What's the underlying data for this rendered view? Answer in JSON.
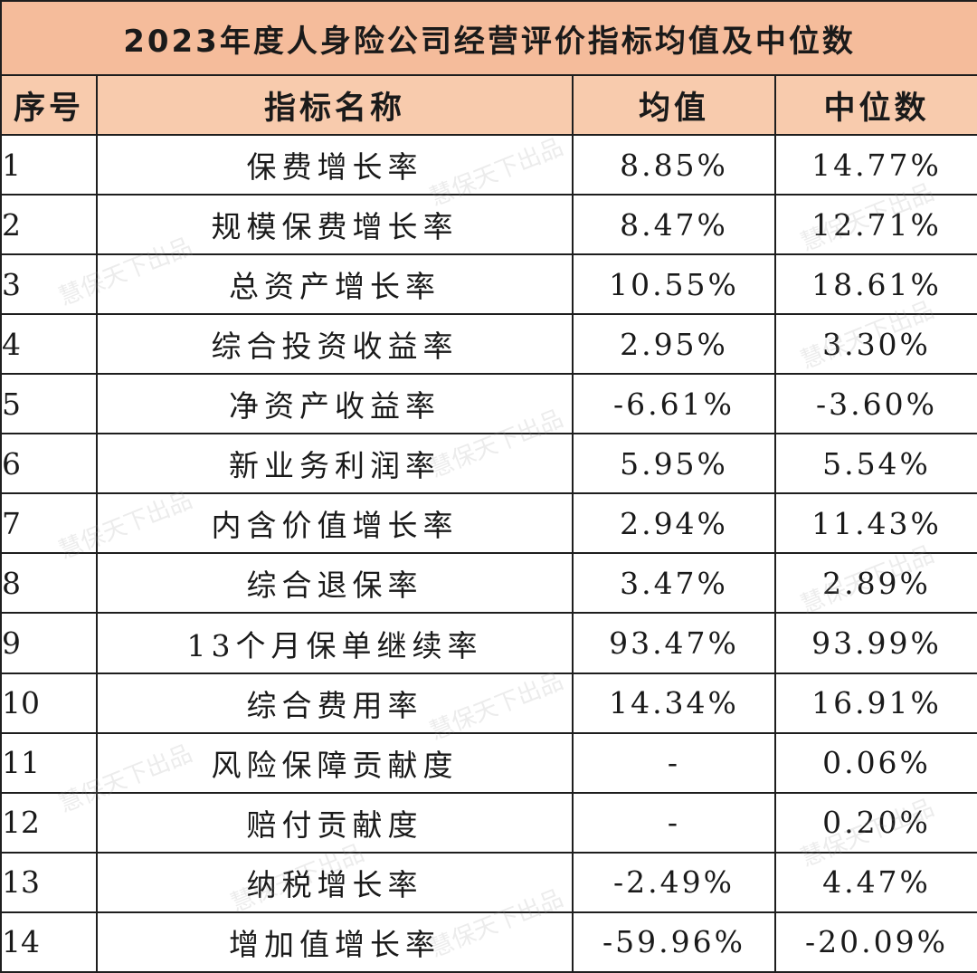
{
  "title": "2023年度人身险公司经营评价指标均值及中位数",
  "headers": {
    "no": "序号",
    "name": "指标名称",
    "mean": "均值",
    "median": "中位数"
  },
  "rows": [
    {
      "no": "1",
      "name": "保费增长率",
      "mean": "8.85%",
      "median": "14.77%"
    },
    {
      "no": "2",
      "name": "规模保费增长率",
      "mean": "8.47%",
      "median": "12.71%"
    },
    {
      "no": "3",
      "name": "总资产增长率",
      "mean": "10.55%",
      "median": "18.61%"
    },
    {
      "no": "4",
      "name": "综合投资收益率",
      "mean": "2.95%",
      "median": "3.30%"
    },
    {
      "no": "5",
      "name": "净资产收益率",
      "mean": "-6.61%",
      "median": "-3.60%"
    },
    {
      "no": "6",
      "name": "新业务利润率",
      "mean": "5.95%",
      "median": "5.54%"
    },
    {
      "no": "7",
      "name": "内含价值增长率",
      "mean": "2.94%",
      "median": "11.43%"
    },
    {
      "no": "8",
      "name": "综合退保率",
      "mean": "3.47%",
      "median": "2.89%"
    },
    {
      "no": "9",
      "name": "13个月保单继续率",
      "mean": "93.47%",
      "median": "93.99%"
    },
    {
      "no": "10",
      "name": "综合费用率",
      "mean": "14.34%",
      "median": "16.91%"
    },
    {
      "no": "11",
      "name": "风险保障贡献度",
      "mean": "-",
      "median": "0.06%"
    },
    {
      "no": "12",
      "name": "赔付贡献度",
      "mean": "-",
      "median": "0.20%"
    },
    {
      "no": "13",
      "name": "纳税增长率",
      "mean": "-2.49%",
      "median": "4.47%"
    },
    {
      "no": "14",
      "name": "增加值增长率",
      "mean": "-59.96%",
      "median": "-20.09%"
    }
  ],
  "watermark": "慧保天下出品",
  "colors": {
    "title_bg": "#f5bc9b",
    "header_bg": "#f8cbad",
    "border": "#1e1e1e",
    "text": "#1a1a1a"
  }
}
